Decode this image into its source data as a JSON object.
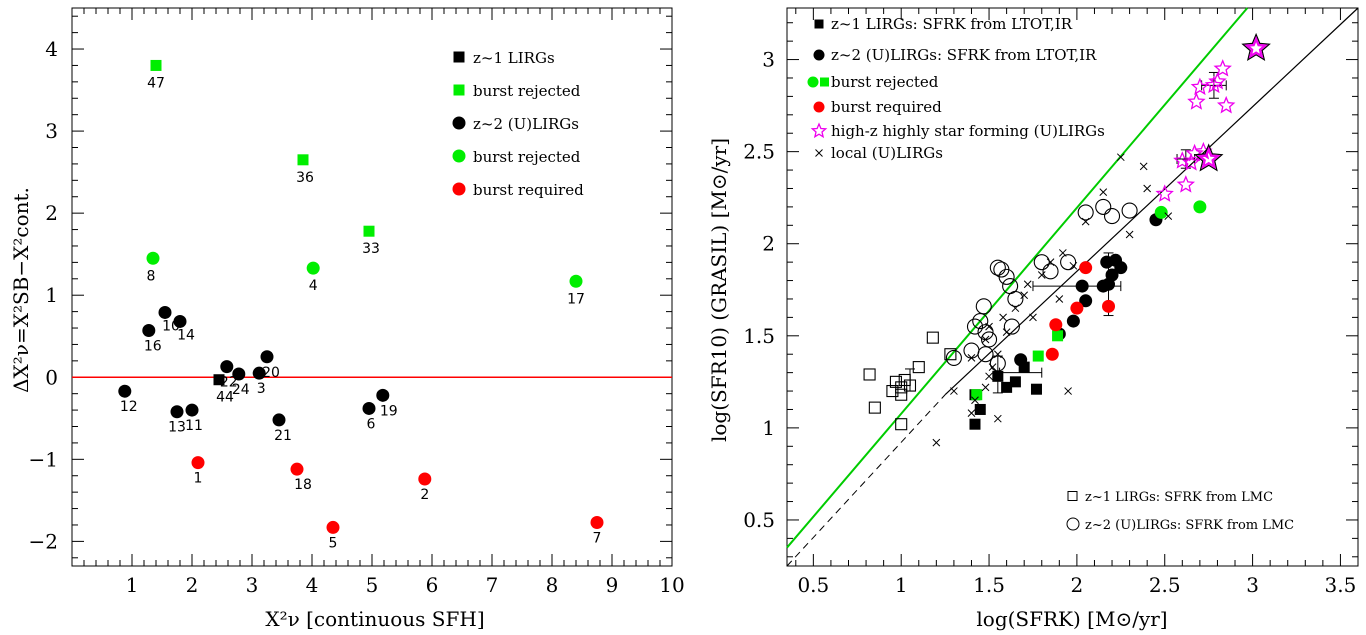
{
  "chart_data": [
    {
      "type": "scatter",
      "xlabel": "X²ν [continuous SFH]",
      "ylabel": "ΔX²ν=X²SB−X²cont.",
      "xlim": [
        0,
        10
      ],
      "ylim": [
        -2.3,
        4.5
      ],
      "x_ticks": [
        "1",
        "2",
        "3",
        "4",
        "5",
        "6",
        "7",
        "8",
        "9",
        "10"
      ],
      "y_ticks": [
        "−2",
        "−1",
        "0",
        "1",
        "2",
        "3",
        "4"
      ],
      "reference_line": {
        "y": 0,
        "color": "#ff0000"
      },
      "legend": [
        {
          "label": "z~1 LIRGs",
          "marker": "square",
          "color": "#000000"
        },
        {
          "label": "burst rejected",
          "marker": "square",
          "color": "#00ee00"
        },
        {
          "label": "z~2 (U)LIRGs",
          "marker": "circle",
          "color": "#000000"
        },
        {
          "label": "burst rejected",
          "marker": "circle",
          "color": "#00ee00"
        },
        {
          "label": "burst required",
          "marker": "circle",
          "color": "#ff0000"
        }
      ],
      "points": [
        {
          "x": 1.4,
          "y": 3.8,
          "label": "47",
          "marker": "square",
          "color": "#00ee00"
        },
        {
          "x": 3.85,
          "y": 2.65,
          "label": "36",
          "marker": "square",
          "color": "#00ee00"
        },
        {
          "x": 4.95,
          "y": 1.78,
          "label": "33",
          "marker": "square",
          "color": "#00ee00"
        },
        {
          "x": 2.45,
          "y": -0.03,
          "label": "44",
          "marker": "square",
          "color": "#000000"
        },
        {
          "x": 1.35,
          "y": 1.45,
          "label": "8",
          "marker": "circle",
          "color": "#00ee00"
        },
        {
          "x": 4.02,
          "y": 1.33,
          "label": "4",
          "marker": "circle",
          "color": "#00ee00"
        },
        {
          "x": 8.4,
          "y": 1.17,
          "label": "17",
          "marker": "circle",
          "color": "#00ee00"
        },
        {
          "x": 1.28,
          "y": 0.57,
          "label": "16",
          "marker": "circle",
          "color": "#000000"
        },
        {
          "x": 1.55,
          "y": 0.79,
          "label": "10",
          "marker": "circle",
          "color": "#000000"
        },
        {
          "x": 1.8,
          "y": 0.68,
          "label": "14",
          "marker": "circle",
          "color": "#000000"
        },
        {
          "x": 0.88,
          "y": -0.17,
          "label": "12",
          "marker": "circle",
          "color": "#000000"
        },
        {
          "x": 1.75,
          "y": -0.42,
          "label": "13",
          "marker": "circle",
          "color": "#000000"
        },
        {
          "x": 2.0,
          "y": -0.4,
          "label": "11",
          "marker": "circle",
          "color": "#000000"
        },
        {
          "x": 2.58,
          "y": 0.13,
          "label": "22",
          "marker": "circle",
          "color": "#000000"
        },
        {
          "x": 2.78,
          "y": 0.04,
          "label": "24",
          "marker": "circle",
          "color": "#000000"
        },
        {
          "x": 3.12,
          "y": 0.05,
          "label": "3",
          "marker": "circle",
          "color": "#000000"
        },
        {
          "x": 3.25,
          "y": 0.25,
          "label": "20",
          "marker": "circle",
          "color": "#000000"
        },
        {
          "x": 3.45,
          "y": -0.52,
          "label": "21",
          "marker": "circle",
          "color": "#000000"
        },
        {
          "x": 4.95,
          "y": -0.38,
          "label": "6",
          "marker": "circle",
          "color": "#000000"
        },
        {
          "x": 5.18,
          "y": -0.22,
          "label": "19",
          "marker": "circle",
          "color": "#000000"
        },
        {
          "x": 2.1,
          "y": -1.04,
          "label": "1",
          "marker": "circle",
          "color": "#ff0000"
        },
        {
          "x": 3.75,
          "y": -1.12,
          "label": "18",
          "marker": "circle",
          "color": "#ff0000"
        },
        {
          "x": 4.35,
          "y": -1.83,
          "label": "5",
          "marker": "circle",
          "color": "#ff0000"
        },
        {
          "x": 5.88,
          "y": -1.24,
          "label": "2",
          "marker": "circle",
          "color": "#ff0000"
        },
        {
          "x": 8.75,
          "y": -1.77,
          "label": "7",
          "marker": "circle",
          "color": "#ff0000"
        }
      ]
    },
    {
      "type": "scatter",
      "xlabel": "log(SFRK) [M⊙/yr]",
      "ylabel": "log(SFR10) (GRASIL) [M⊙/yr]",
      "xlim": [
        0.35,
        3.6
      ],
      "ylim": [
        0.25,
        3.28
      ],
      "x_ticks": [
        "0.5",
        "1",
        "1.5",
        "2",
        "2.5",
        "3",
        "3.5"
      ],
      "y_ticks": [
        "0.5",
        "1",
        "1.5",
        "2",
        "2.5",
        "3"
      ],
      "lines": [
        {
          "name": "one-to-one",
          "color": "#000000",
          "x": [
            0.35,
            3.6
          ],
          "y": [
            0.25,
            3.28
          ]
        },
        {
          "name": "offset",
          "color": "#00cc00",
          "x": [
            0.35,
            2.97
          ],
          "y": [
            0.35,
            3.28
          ]
        }
      ],
      "legend_top": [
        {
          "label": "z~1 LIRGs: SFRK from LTOT,IR",
          "marker": "filled-square",
          "color": "#000000"
        },
        {
          "label": "z~2 (U)LIRGs: SFRK from LTOT,IR",
          "marker": "filled-circle",
          "color": "#000000"
        },
        {
          "label": "burst rejected",
          "marker": "green-circle-square",
          "color": "#00ee00"
        },
        {
          "label": "burst required",
          "marker": "filled-circle",
          "color": "#ff0000"
        },
        {
          "label": "high-z highly star forming (U)LIRGs",
          "marker": "star",
          "color": "#ee00ee"
        },
        {
          "label": "local (U)LIRGs",
          "marker": "cross",
          "color": "#000000"
        }
      ],
      "legend_bottom": [
        {
          "label": "z~1 LIRGs: SFRK from LMC",
          "marker": "open-square",
          "color": "#000000"
        },
        {
          "label": "z~2 (U)LIRGs: SFRK from LMC",
          "marker": "open-circle",
          "color": "#000000"
        }
      ],
      "series": [
        {
          "marker": "filled-square",
          "color": "#000000",
          "points": [
            [
              1.42,
              1.02
            ],
            [
              1.45,
              1.1
            ],
            [
              1.42,
              1.18
            ],
            [
              1.55,
              1.28
            ],
            [
              1.6,
              1.22
            ],
            [
              1.65,
              1.25
            ],
            [
              1.7,
              1.33
            ],
            [
              1.77,
              1.21
            ]
          ]
        },
        {
          "marker": "filled-circle",
          "color": "#000000",
          "points": [
            [
              1.68,
              1.37
            ],
            [
              1.9,
              1.51
            ],
            [
              1.98,
              1.58
            ],
            [
              2.03,
              1.77
            ],
            [
              2.05,
              1.69
            ],
            [
              2.15,
              1.77
            ],
            [
              2.17,
              1.9
            ],
            [
              2.18,
              1.78
            ],
            [
              2.2,
              1.83
            ],
            [
              2.22,
              1.91
            ],
            [
              2.25,
              1.87
            ],
            [
              2.45,
              2.13
            ]
          ]
        },
        {
          "marker": "filled-square",
          "color": "#00ee00",
          "points": [
            [
              1.43,
              1.18
            ],
            [
              1.78,
              1.39
            ],
            [
              1.89,
              1.5
            ]
          ]
        },
        {
          "marker": "filled-circle",
          "color": "#00ee00",
          "points": [
            [
              2.48,
              2.17
            ],
            [
              2.7,
              2.2
            ]
          ]
        },
        {
          "marker": "filled-circle",
          "color": "#ff0000",
          "points": [
            [
              1.86,
              1.4
            ],
            [
              1.88,
              1.56
            ],
            [
              2.0,
              1.65
            ],
            [
              2.05,
              1.87
            ],
            [
              2.18,
              1.66
            ]
          ]
        },
        {
          "marker": "star",
          "color": "#ee00ee",
          "points": [
            [
              2.5,
              2.27
            ],
            [
              2.6,
              2.45
            ],
            [
              2.62,
              2.32
            ],
            [
              2.65,
              2.44
            ],
            [
              2.67,
              2.49
            ],
            [
              2.68,
              2.77
            ],
            [
              2.7,
              2.85
            ],
            [
              2.72,
              2.5
            ],
            [
              2.75,
              2.46
            ],
            [
              2.78,
              2.86
            ],
            [
              2.8,
              2.88
            ],
            [
              2.83,
              2.95
            ],
            [
              2.85,
              2.75
            ],
            [
              3.02,
              3.06
            ]
          ]
        },
        {
          "marker": "big-star",
          "color": "#ee00ee",
          "points": [
            [
              2.75,
              2.46
            ],
            [
              3.02,
              3.06
            ]
          ]
        },
        {
          "marker": "cross",
          "color": "#000000",
          "points": [
            [
              1.2,
              0.92
            ],
            [
              1.4,
              1.08
            ],
            [
              1.42,
              1.15
            ],
            [
              1.48,
              1.22
            ],
            [
              1.5,
              1.28
            ],
            [
              1.52,
              1.33
            ],
            [
              1.4,
              1.38
            ],
            [
              1.55,
              1.4
            ],
            [
              1.48,
              1.48
            ],
            [
              1.6,
              1.52
            ],
            [
              1.5,
              1.55
            ],
            [
              1.58,
              1.6
            ],
            [
              1.65,
              1.65
            ],
            [
              1.7,
              1.72
            ],
            [
              1.72,
              1.78
            ],
            [
              1.8,
              1.83
            ],
            [
              1.85,
              1.9
            ],
            [
              1.92,
              1.95
            ],
            [
              1.75,
              1.6
            ],
            [
              1.9,
              1.7
            ],
            [
              1.98,
              1.88
            ],
            [
              2.05,
              2.12
            ],
            [
              2.15,
              2.28
            ],
            [
              2.25,
              2.47
            ],
            [
              2.38,
              2.42
            ],
            [
              2.4,
              2.3
            ],
            [
              2.52,
              2.15
            ],
            [
              2.3,
              2.05
            ],
            [
              1.95,
              1.2
            ],
            [
              1.3,
              1.2
            ],
            [
              1.55,
              1.05
            ]
          ]
        },
        {
          "marker": "open-square",
          "color": "#000000",
          "points": [
            [
              0.82,
              1.29
            ],
            [
              0.85,
              1.11
            ],
            [
              0.95,
              1.2
            ],
            [
              0.97,
              1.25
            ],
            [
              1.0,
              1.18
            ],
            [
              1.0,
              1.22
            ],
            [
              1.02,
              1.26
            ],
            [
              1.05,
              1.23
            ],
            [
              1.1,
              1.33
            ],
            [
              1.18,
              1.49
            ],
            [
              1.28,
              1.4
            ],
            [
              1.0,
              1.02
            ]
          ]
        },
        {
          "marker": "open-circle",
          "color": "#000000",
          "points": [
            [
              1.3,
              1.38
            ],
            [
              1.42,
              1.55
            ],
            [
              1.45,
              1.58
            ],
            [
              1.47,
              1.66
            ],
            [
              1.5,
              1.48
            ],
            [
              1.48,
              1.52
            ],
            [
              1.55,
              1.87
            ],
            [
              1.57,
              1.86
            ],
            [
              1.6,
              1.82
            ],
            [
              1.62,
              1.77
            ],
            [
              1.65,
              1.7
            ],
            [
              1.63,
              1.55
            ],
            [
              1.48,
              1.4
            ],
            [
              1.8,
              1.9
            ],
            [
              1.85,
              1.85
            ],
            [
              1.95,
              1.9
            ],
            [
              2.05,
              2.17
            ],
            [
              2.15,
              2.2
            ],
            [
              2.2,
              2.15
            ],
            [
              2.3,
              2.18
            ],
            [
              1.55,
              1.35
            ],
            [
              1.4,
              1.42
            ]
          ]
        }
      ]
    }
  ]
}
